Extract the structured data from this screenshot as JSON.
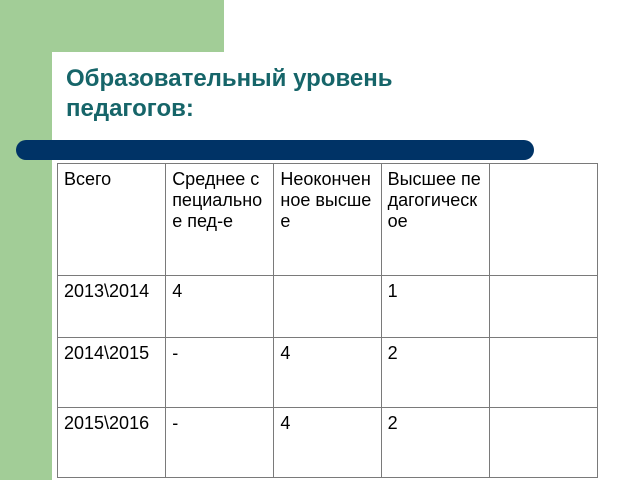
{
  "title": {
    "line1": "Образовательный уровень",
    "line2": "педагогов:"
  },
  "colors": {
    "accent_green": "#a2cd97",
    "title_teal": "#166569",
    "rule_navy": "#003366"
  },
  "table": {
    "headers": [
      "Всего",
      "Среднее специальное пед-е",
      "Неоконченное высшее",
      "Высшее педагогическое",
      ""
    ],
    "rows": [
      [
        "2013\\2014",
        "4",
        "",
        "1",
        ""
      ],
      [
        "2014\\2015",
        "-",
        "4",
        "2",
        ""
      ],
      [
        "2015\\2016",
        "-",
        "4",
        "2",
        ""
      ]
    ]
  }
}
